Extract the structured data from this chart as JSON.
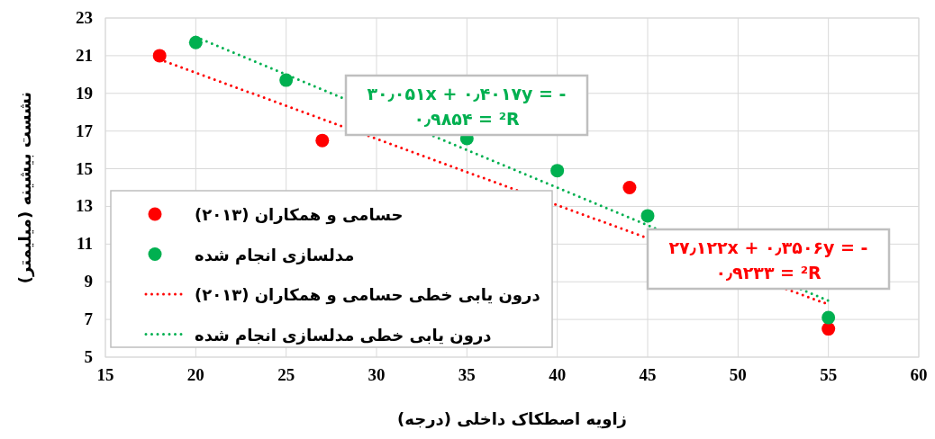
{
  "chart_data": {
    "type": "scatter",
    "xlabel": "زاویه اصطکاک داخلی (درجه)",
    "ylabel": "نشست بیشینه (میلیمتر)",
    "xlim": [
      15,
      60
    ],
    "xticks": [
      15,
      20,
      25,
      30,
      35,
      40,
      45,
      50,
      55,
      60
    ],
    "ylim": [
      5,
      23
    ],
    "yticks": [
      5,
      7,
      9,
      11,
      13,
      15,
      17,
      19,
      21,
      23
    ],
    "grid": true,
    "legend": "bottom left",
    "marker": "circle",
    "series": [
      {
        "name": "حسامی و همکاران (۲۰۱۳)",
        "color": "#ff0000",
        "x": [
          18,
          27,
          44,
          55
        ],
        "values": [
          21,
          16.5,
          14,
          6.5
        ]
      },
      {
        "name": "مدلسازی انجام شده",
        "color": "#00b050",
        "x": [
          20,
          25,
          35,
          40,
          45,
          55
        ],
        "values": [
          21.7,
          19.7,
          16.6,
          14.9,
          12.5,
          7.1
        ]
      },
      {
        "name": "درون یابی خطی حسامی و همکاران (۲۰۱۳)",
        "type": "line",
        "line_style": "dotted",
        "marker": "none",
        "color": "#ff0000",
        "x": [
          18,
          55
        ],
        "values": [
          20.8,
          7.8
        ]
      },
      {
        "name": "درون یابی خطی مدلسازی انجام شده",
        "type": "line",
        "line_style": "dotted",
        "marker": "none",
        "color": "#00b050",
        "x": [
          20,
          55
        ],
        "values": [
          22.0,
          8.0
        ]
      }
    ],
    "annotations": [
      "۳۰٫۰۵۱x + ۰٫۴۰۱۷y = -",
      "۰٫۹۸۵۴ = ²R",
      "۲۷٫۱۲۲x + ۰٫۳۵۰۶y = -",
      "۰٫۹۲۳۳ = ²R"
    ]
  }
}
